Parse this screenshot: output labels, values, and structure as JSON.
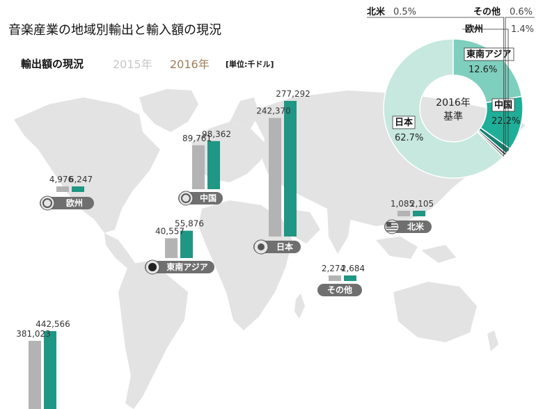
{
  "title": "音楽産業の地域別輸出と輸入額の現況",
  "export_label": "輸出額の現況",
  "year_2015": "2015年",
  "year_2016": "2016年",
  "unit": "[単位:千ドル]",
  "colors": {
    "y2015": "#b3b3b3",
    "y2016": "#209684",
    "map": "#e3e3e3"
  },
  "chart_data": [
    {
      "type": "bar",
      "series": [
        {
          "name": "2015年",
          "values": [
            4976,
            89761,
            242370,
            40557,
            1085,
            2274,
            381023
          ]
        },
        {
          "name": "2016年",
          "values": [
            6247,
            98362,
            277292,
            55876,
            2105,
            2684,
            442566
          ]
        }
      ],
      "categories": [
        "欧州",
        "中国",
        "日本",
        "東南アジア",
        "北米",
        "その他",
        ""
      ],
      "value_labels_2015": [
        "4,976",
        "89,761",
        "242,370",
        "40,557",
        "1,085",
        "2,274",
        "381,023"
      ],
      "value_labels_2016": [
        "6,247",
        "98,362",
        "277,292",
        "55,876",
        "2,105",
        "2,684",
        "442,566"
      ],
      "region_icons": [
        "eu-flag-icon",
        "china-flag-icon",
        "japan-flag-icon",
        "asean-icon",
        "us-flag-icon",
        "",
        ""
      ]
    },
    {
      "type": "pie",
      "center_label": [
        "2016年",
        "基準"
      ],
      "categories": [
        "日本",
        "中国",
        "東南アジア",
        "欧州",
        "その他",
        "北米"
      ],
      "values": [
        62.7,
        22.2,
        12.6,
        1.4,
        0.6,
        0.5
      ],
      "value_labels": [
        "62.7%",
        "22.2%",
        "12.6%",
        "1.4%",
        "0.6%",
        "0.5%"
      ],
      "colors": [
        "#c6e8de",
        "#7ecfbd",
        "#1fae97",
        "#16806f",
        "#3f4a48",
        "#7d8886"
      ]
    }
  ]
}
